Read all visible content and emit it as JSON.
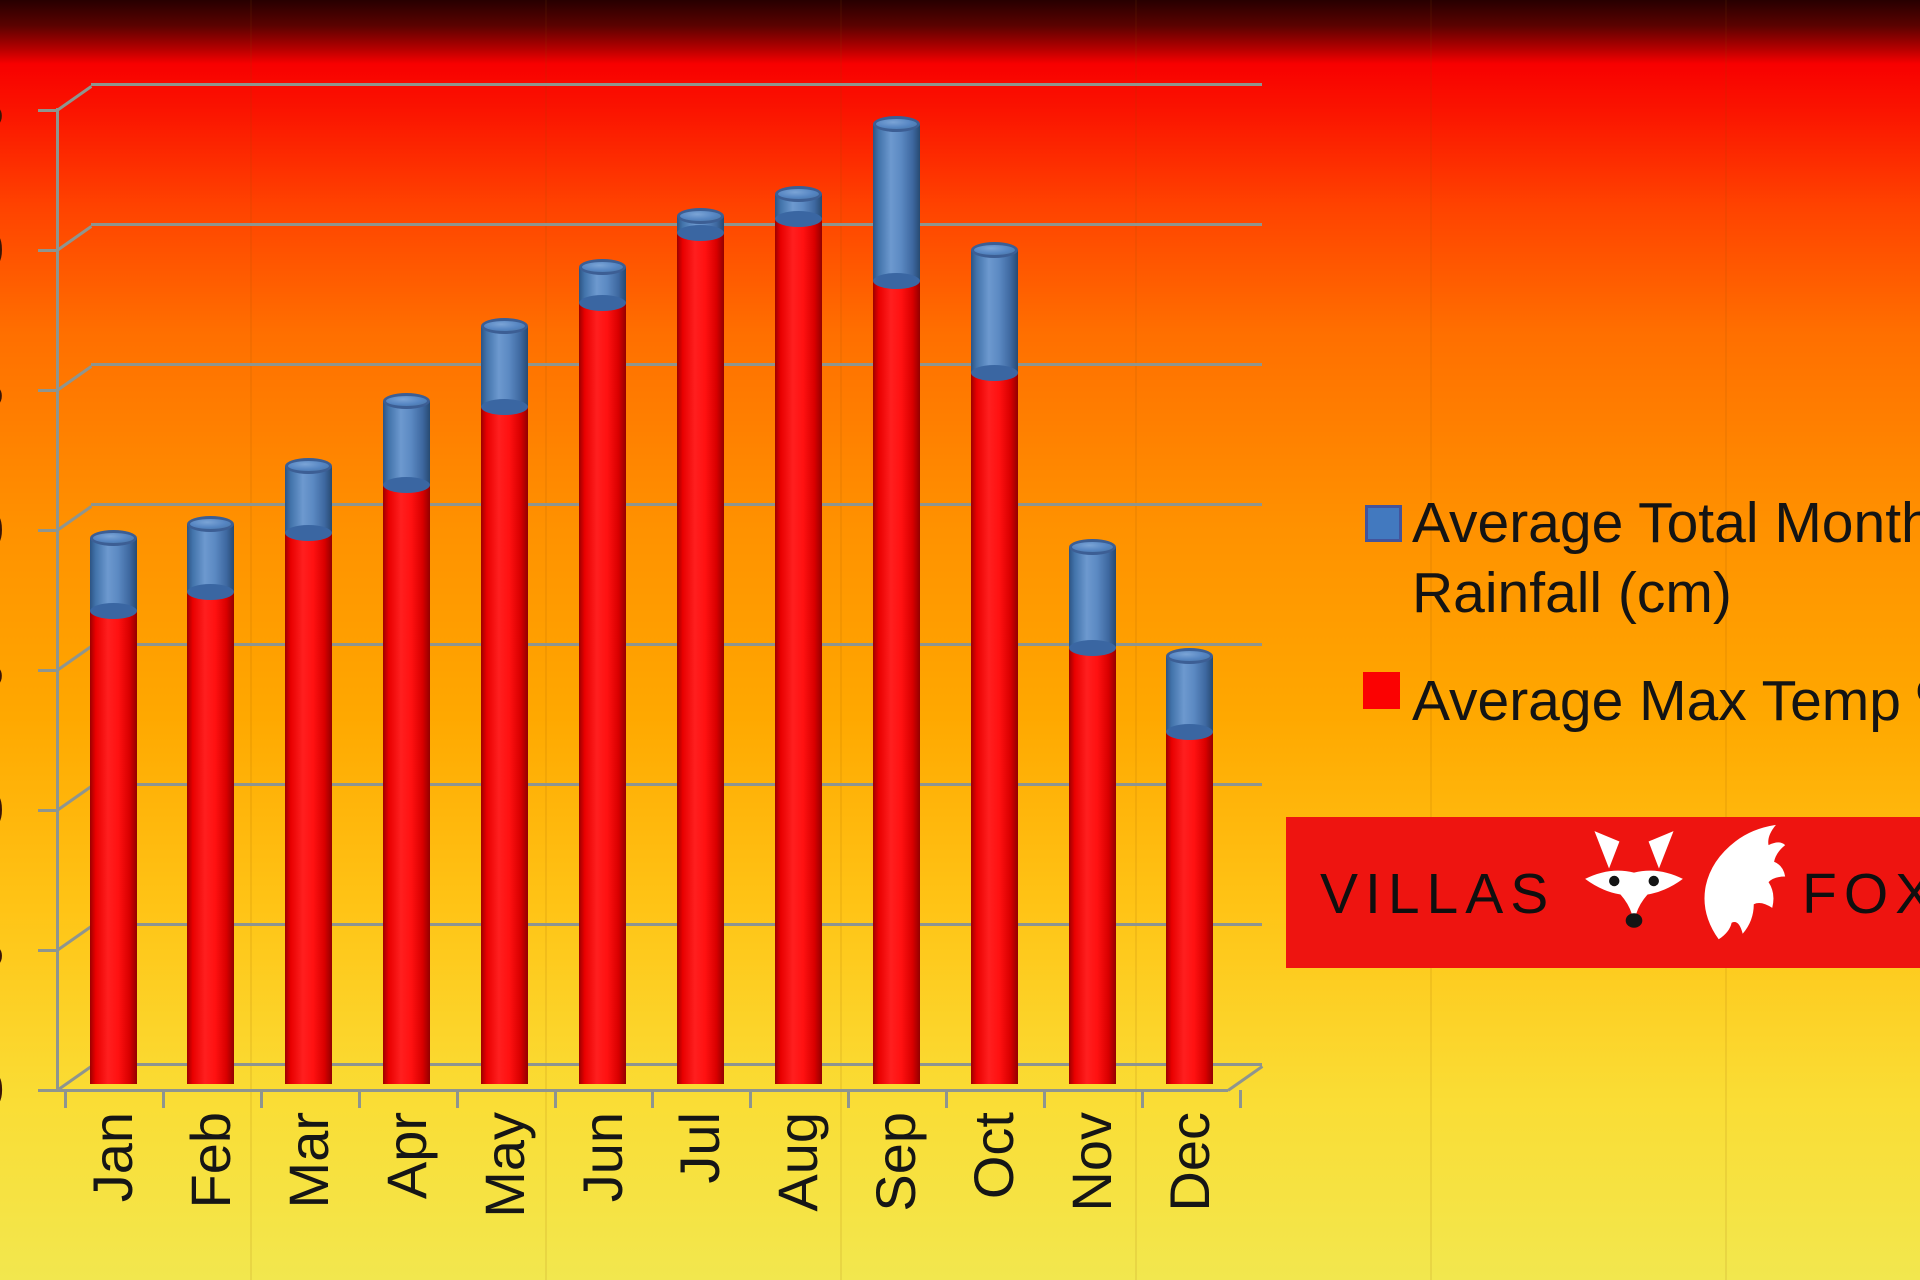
{
  "chart_data": {
    "type": "bar",
    "stacked": true,
    "categories": [
      "Jan",
      "Feb",
      "Mar",
      "Apr",
      "May",
      "Jun",
      "Jul",
      "Aug",
      "Sep",
      "Oct",
      "Nov",
      "Dec"
    ],
    "series": [
      {
        "name": "Average Max Temp ºC",
        "color": "#ee0606",
        "values": [
          17.1,
          17.8,
          19.9,
          21.6,
          24.4,
          28.1,
          30.6,
          31.1,
          28.9,
          25.6,
          15.8,
          12.8
        ]
      },
      {
        "name": "Average Total Monthly Rainfall (cm)",
        "color": "#4f81bd",
        "values": [
          2.6,
          2.4,
          2.4,
          3.0,
          2.9,
          1.3,
          0.6,
          0.9,
          5.6,
          4.4,
          3.6,
          2.7
        ]
      }
    ],
    "title": "",
    "xlabel": "",
    "ylabel": "",
    "ylim": [
      0,
      35
    ],
    "ytick_interval": 5,
    "y_axis_labels_clipped": true,
    "grid": true,
    "bar_style": "3d-cylinder",
    "legend_position": "right"
  },
  "legend": {
    "items": [
      {
        "line1": "Average Total Monthly",
        "line2": "Rainfall (cm)",
        "swatch": "#4279bf"
      },
      {
        "line1": "Average Max Temp ºC",
        "line2": "",
        "swatch": "#fb0202"
      }
    ]
  },
  "logo": {
    "brand_left": "VILLAS",
    "brand_right": "FOX",
    "banner_color": "#ee1410",
    "icons": [
      "fox-face",
      "fox-tail"
    ]
  }
}
